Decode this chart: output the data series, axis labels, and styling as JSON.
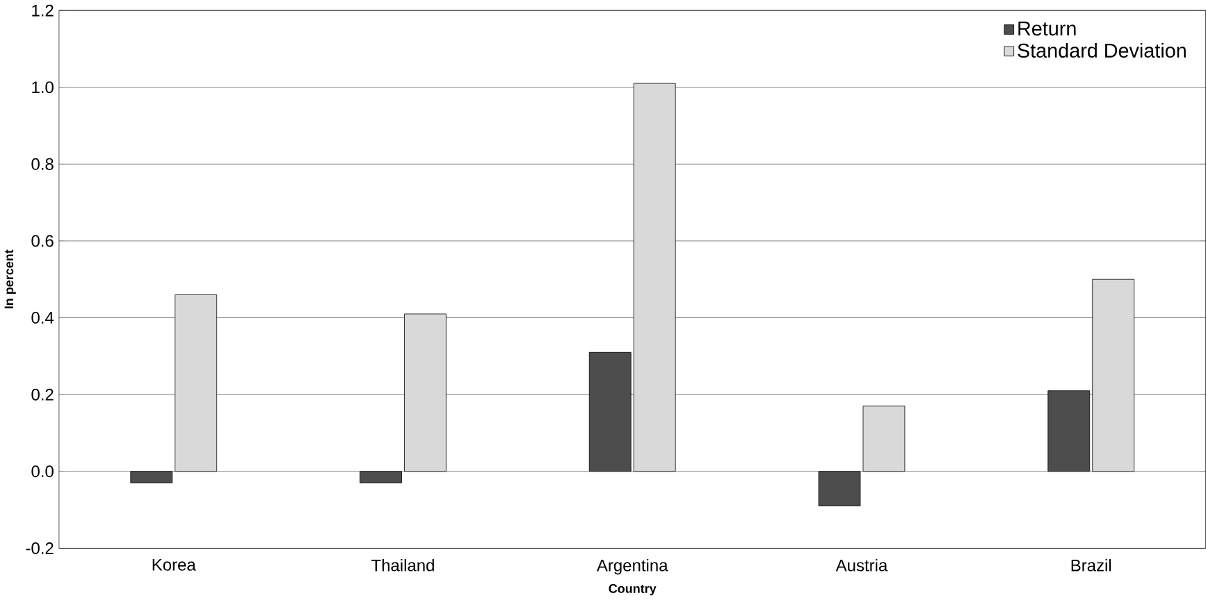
{
  "chart_data": {
    "type": "bar",
    "xlabel": "Country",
    "ylabel": "In percent",
    "categories": [
      "Korea",
      "Thailand",
      "Argentina",
      "Austria",
      "Brazil"
    ],
    "series": [
      {
        "name": "Return",
        "color": "#4d4d4d",
        "values": [
          -0.03,
          -0.03,
          0.31,
          -0.09,
          0.21
        ]
      },
      {
        "name": "Standard Deviation",
        "color": "#d9d9d9",
        "values": [
          0.46,
          0.41,
          1.01,
          0.17,
          0.5
        ]
      }
    ],
    "ylim": [
      -0.2,
      1.2
    ],
    "yticks": [
      {
        "value": -0.2,
        "label": "-0.2"
      },
      {
        "value": 0,
        "label": "0.0"
      },
      {
        "value": 0.2,
        "label": "0.2"
      },
      {
        "value": 0.4,
        "label": "0.4"
      },
      {
        "value": 0.6,
        "label": "0.6"
      },
      {
        "value": 0.8,
        "label": "0.8"
      },
      {
        "value": 1.0,
        "label": "1.0"
      },
      {
        "value": 1.2,
        "label": "1.2"
      }
    ],
    "grid": "y",
    "legend": "top right"
  }
}
